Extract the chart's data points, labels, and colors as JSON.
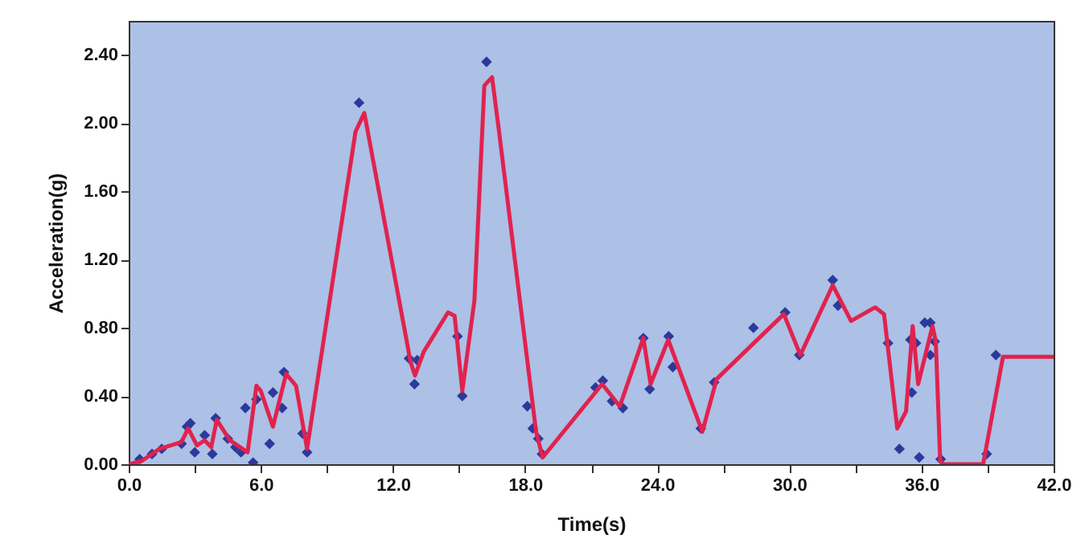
{
  "chart_data": {
    "type": "scatter",
    "xlabel": "Time(s)",
    "ylabel": "Acceleration(g)",
    "xlim": [
      0,
      42
    ],
    "ylim": [
      0,
      2.6
    ],
    "xticks": [
      {
        "value": 0,
        "label": "0.0"
      },
      {
        "value": 3,
        "label": null
      },
      {
        "value": 6,
        "label": "6.0"
      },
      {
        "value": 9,
        "label": null
      },
      {
        "value": 12,
        "label": "12.0"
      },
      {
        "value": 15,
        "label": null
      },
      {
        "value": 18,
        "label": "18.0"
      },
      {
        "value": 21,
        "label": null
      },
      {
        "value": 24,
        "label": "24.0"
      },
      {
        "value": 27,
        "label": null
      },
      {
        "value": 30,
        "label": "30.0"
      },
      {
        "value": 33,
        "label": null
      },
      {
        "value": 36,
        "label": "36.0"
      },
      {
        "value": 39,
        "label": null
      },
      {
        "value": 42,
        "label": "42.0"
      }
    ],
    "yticks": [
      {
        "value": 0,
        "label": "0.00"
      },
      {
        "value": 0.4,
        "label": "0.40"
      },
      {
        "value": 0.8,
        "label": "0.80"
      },
      {
        "value": 1.2,
        "label": "1.20"
      },
      {
        "value": 1.6,
        "label": "1.60"
      },
      {
        "value": 2.0,
        "label": "2.00"
      },
      {
        "value": 2.4,
        "label": "2.40"
      }
    ],
    "line_style": "solid",
    "series": [
      {
        "marker": "diamond",
        "color": "#2b3a9b",
        "x": [
          0.5,
          1.06,
          1.5,
          2.4,
          2.65,
          2.8,
          3.0,
          3.45,
          3.8,
          3.95,
          4.5,
          4.85,
          5.1,
          5.3,
          5.65,
          5.8,
          6.4,
          6.55,
          6.97,
          7.05,
          7.9,
          8.1,
          10.46,
          12.73,
          12.98,
          13.1,
          14.93,
          15.15,
          16.25,
          18.1,
          18.35,
          18.6,
          18.77,
          21.2,
          21.53,
          21.95,
          22.44,
          23.37,
          23.66,
          24.52,
          24.71,
          25.98,
          26.59,
          28.37,
          29.81,
          30.45,
          31.97,
          32.21,
          34.48,
          35.0,
          35.5,
          35.56,
          35.75,
          35.9,
          36.15,
          36.4,
          36.4,
          36.6,
          36.87,
          38.96,
          39.38
        ],
        "values": [
          0.03,
          0.06,
          0.09,
          0.12,
          0.22,
          0.24,
          0.07,
          0.17,
          0.06,
          0.27,
          0.15,
          0.1,
          0.07,
          0.33,
          0.01,
          0.38,
          0.12,
          0.42,
          0.33,
          0.54,
          0.18,
          0.07,
          2.12,
          0.62,
          0.47,
          0.61,
          0.75,
          0.4,
          2.36,
          0.34,
          0.21,
          0.15,
          0.06,
          0.45,
          0.49,
          0.37,
          0.33,
          0.74,
          0.44,
          0.75,
          0.57,
          0.21,
          0.48,
          0.8,
          0.89,
          0.64,
          1.08,
          0.93,
          0.71,
          0.09,
          0.73,
          0.42,
          0.71,
          0.04,
          0.83,
          0.83,
          0.64,
          0.72,
          0.03,
          0.06,
          0.64
        ]
      },
      {
        "type": "line",
        "color": "#e0234e",
        "x": [
          0,
          0.6,
          1.4,
          2.4,
          2.7,
          3.1,
          3.45,
          3.75,
          4.0,
          4.6,
          5.4,
          5.8,
          6.0,
          6.55,
          7.15,
          7.6,
          8.1,
          10.3,
          10.7,
          12.8,
          13.0,
          13.4,
          14.5,
          14.8,
          15.15,
          15.7,
          16.15,
          16.5,
          16.8,
          18.5,
          18.8,
          21.5,
          22.3,
          23.37,
          23.7,
          24.5,
          26.05,
          26.7,
          29.75,
          30.5,
          31.97,
          32.8,
          33.9,
          34.3,
          34.9,
          35.3,
          35.6,
          35.85,
          36.5,
          36.65,
          36.85,
          37.0,
          38.8,
          39.7,
          42.0
        ],
        "values": [
          0,
          0.02,
          0.09,
          0.13,
          0.21,
          0.11,
          0.14,
          0.1,
          0.26,
          0.14,
          0.07,
          0.46,
          0.43,
          0.22,
          0.53,
          0.46,
          0.09,
          1.95,
          2.06,
          0.6,
          0.52,
          0.66,
          0.89,
          0.87,
          0.43,
          0.96,
          2.22,
          2.27,
          1.97,
          0.19,
          0.04,
          0.47,
          0.34,
          0.74,
          0.47,
          0.73,
          0.19,
          0.5,
          0.88,
          0.64,
          1.05,
          0.84,
          0.92,
          0.88,
          0.21,
          0.31,
          0.81,
          0.47,
          0.81,
          0.72,
          0.02,
          0,
          0,
          0.63,
          0.63
        ]
      }
    ]
  }
}
